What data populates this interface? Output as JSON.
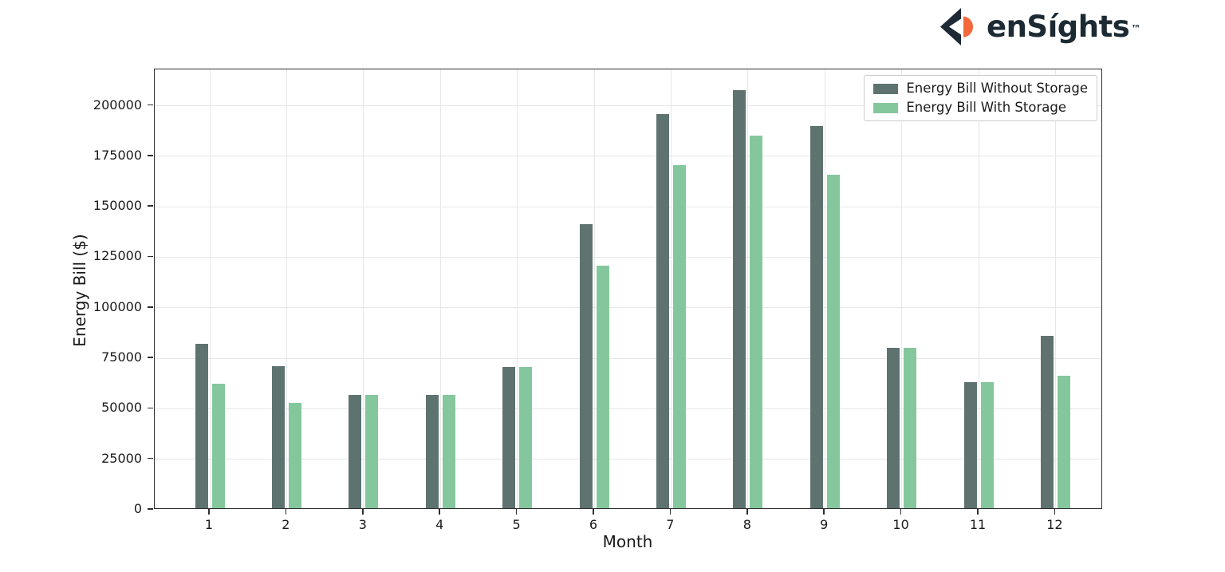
{
  "logo": {
    "brand": "enSíghts",
    "trademark": "™",
    "dark_color": "#1d2935",
    "accent_color": "#f4683b"
  },
  "chart_data": {
    "type": "bar",
    "title": "",
    "xlabel": "Month",
    "ylabel": "Energy Bill ($)",
    "categories": [
      "1",
      "2",
      "3",
      "4",
      "5",
      "6",
      "7",
      "8",
      "9",
      "10",
      "11",
      "12"
    ],
    "series": [
      {
        "name": "Energy Bill Without Storage",
        "color": "#5e7370",
        "values": [
          81500,
          70500,
          56000,
          56000,
          70000,
          140500,
          195000,
          207000,
          189000,
          79500,
          62500,
          85500
        ]
      },
      {
        "name": "Energy Bill With Storage",
        "color": "#85c79c",
        "values": [
          61500,
          52000,
          56000,
          56000,
          70000,
          120000,
          170000,
          184500,
          165000,
          79500,
          62500,
          65500
        ]
      }
    ],
    "ylim": [
      0,
      218000
    ],
    "yticks": [
      0,
      25000,
      50000,
      75000,
      100000,
      125000,
      150000,
      175000,
      200000
    ],
    "grid": true,
    "legend_position": "top-right"
  }
}
